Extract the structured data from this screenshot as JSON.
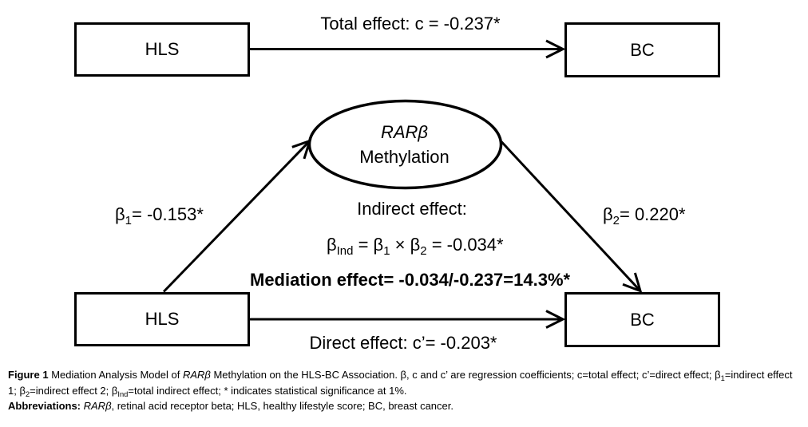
{
  "figure": {
    "background_color": "#ffffff",
    "ink_color": "#000000",
    "type": "mediation-analysis-path-diagram"
  },
  "top_model": {
    "hls_box_label": "HLS",
    "bc_box_label": "BC",
    "arrow_label": "Total effect: c = -0.237*"
  },
  "mediator": {
    "line1_runs": [
      {
        "t": "RARβ",
        "s": "i"
      }
    ],
    "line2": "Methylation"
  },
  "paths": {
    "beta1_runs": [
      {
        "t": "β"
      },
      {
        "t": "1",
        "s": "sub"
      },
      {
        "t": "= -0.153*"
      }
    ],
    "beta2_runs": [
      {
        "t": "β"
      },
      {
        "t": "2",
        "s": "sub"
      },
      {
        "t": "= 0.220*"
      }
    ],
    "indirect_title": "Indirect effect:",
    "indirect_formula_runs": [
      {
        "t": "β"
      },
      {
        "t": "Ind",
        "s": "sub"
      },
      {
        "t": " = β"
      },
      {
        "t": "1",
        "s": "sub"
      },
      {
        "t": " × β"
      },
      {
        "t": "2",
        "s": "sub"
      },
      {
        "t": " = -0.034*"
      }
    ],
    "mediation_effect": "Mediation effect= -0.034/-0.237=14.3%*"
  },
  "bottom_model": {
    "hls_box_label": "HLS",
    "bc_box_label": "BC",
    "arrow_label": "Direct effect: c’= -0.203*"
  },
  "caption": {
    "line1_runs": [
      {
        "t": "Figure 1 ",
        "s": "b"
      },
      {
        "t": "Mediation Analysis Model of "
      },
      {
        "t": "RARβ",
        "s": "i"
      },
      {
        "t": " Methylation on the HLS-BC Association. β, c and c’ are regression coefficients; c=total effect; c’=direct effect; β"
      },
      {
        "t": "1",
        "s": "sub"
      },
      {
        "t": "=indirect effect"
      }
    ],
    "line2_runs": [
      {
        "t": "1; β"
      },
      {
        "t": "2",
        "s": "sub"
      },
      {
        "t": "=indirect effect 2; β"
      },
      {
        "t": "Ind",
        "s": "sub"
      },
      {
        "t": "=total indirect effect; * indicates statistical significance at 1%."
      }
    ],
    "line3_runs": [
      {
        "t": "Abbreviations: ",
        "s": "b"
      },
      {
        "t": "RARβ",
        "s": "i"
      },
      {
        "t": ", retinal acid receptor beta; HLS, healthy lifestyle score; BC, breast cancer."
      }
    ]
  }
}
